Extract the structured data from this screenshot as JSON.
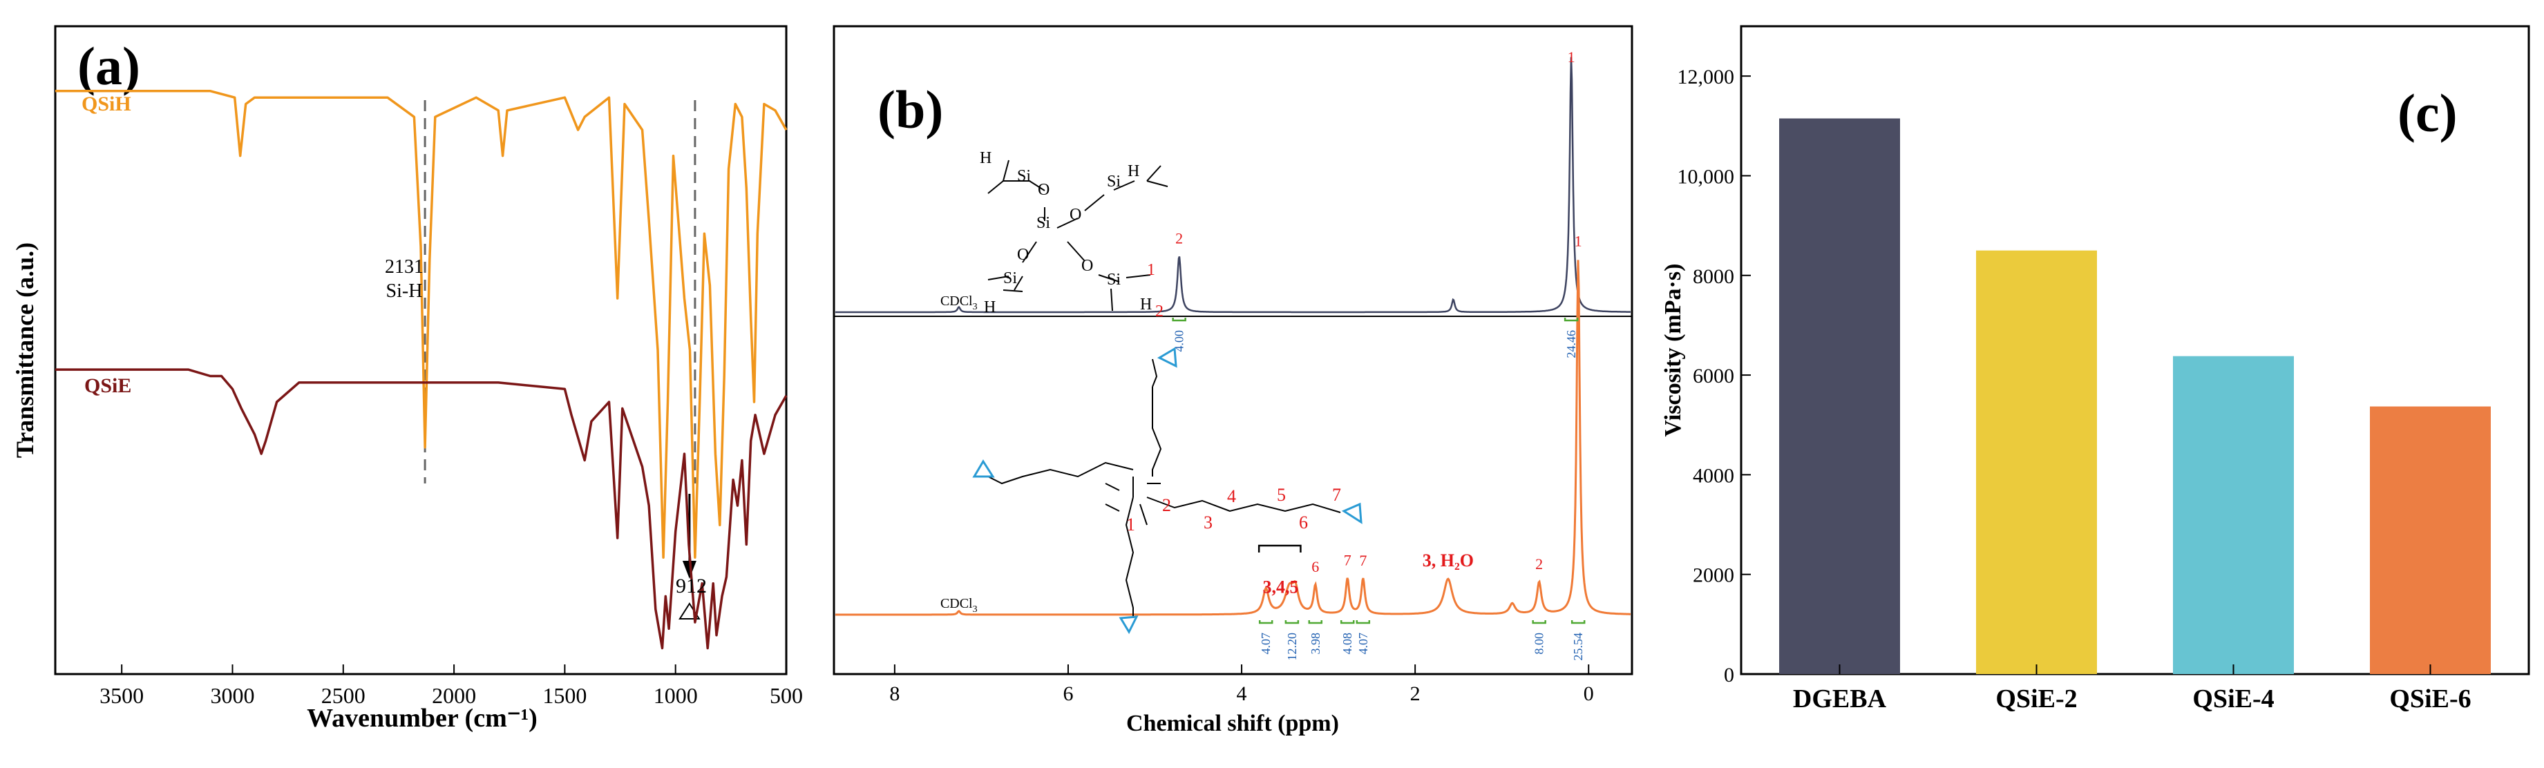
{
  "colors": {
    "qsih": "#f0961c",
    "qsie": "#7b1616",
    "nmr_top": "#3d4360",
    "nmr_bottom": "#f07a36",
    "marker_red": "#e31a1c",
    "integral_green": "#4fa832",
    "integral_blue": "#1f5fb0",
    "bar_dgeba": "#4b4d63",
    "bar_qsie2": "#ebcb3c",
    "bar_qsie4": "#67c4d2",
    "bar_qsie6": "#ec7e43"
  },
  "chart_data": [
    {
      "panel_label": "(a)",
      "type": "line",
      "xlabel": "Wavenumber (cm⁻¹)",
      "ylabel": "Transmittance (a.u.)",
      "xlim": [
        3800,
        500
      ],
      "x_reversed": true,
      "xticks": [
        "3500",
        "3000",
        "2500",
        "2000",
        "1500",
        "1000",
        "500"
      ],
      "xtick_values": [
        3500,
        3000,
        2500,
        2000,
        1500,
        1000,
        500
      ],
      "ylim": [
        0,
        1
      ],
      "series": [
        {
          "name": "QSiH",
          "x": [
            3800,
            3100,
            2990,
            2965,
            2940,
            2900,
            2700,
            2300,
            2180,
            2150,
            2131,
            2110,
            2085,
            1900,
            1800,
            1780,
            1760,
            1500,
            1440,
            1410,
            1300,
            1262,
            1230,
            1150,
            1120,
            1080,
            1055,
            1035,
            1010,
            960,
            935,
            912,
            890,
            870,
            845,
            820,
            800,
            780,
            760,
            730,
            700,
            680,
            660,
            645,
            630,
            600,
            550,
            500
          ],
          "y": [
            0.9,
            0.9,
            0.89,
            0.8,
            0.88,
            0.89,
            0.89,
            0.89,
            0.86,
            0.66,
            0.35,
            0.64,
            0.86,
            0.89,
            0.87,
            0.8,
            0.87,
            0.89,
            0.84,
            0.86,
            0.89,
            0.58,
            0.88,
            0.84,
            0.7,
            0.5,
            0.18,
            0.42,
            0.8,
            0.58,
            0.5,
            0.18,
            0.43,
            0.68,
            0.6,
            0.34,
            0.23,
            0.46,
            0.78,
            0.88,
            0.86,
            0.75,
            0.55,
            0.42,
            0.68,
            0.88,
            0.87,
            0.84
          ]
        },
        {
          "name": "QSiE",
          "x": [
            3800,
            3200,
            3100,
            3050,
            3000,
            2960,
            2930,
            2900,
            2870,
            2850,
            2800,
            2700,
            2500,
            2131,
            1800,
            1500,
            1470,
            1410,
            1380,
            1300,
            1262,
            1240,
            1200,
            1150,
            1120,
            1090,
            1060,
            1045,
            1030,
            1000,
            960,
            940,
            912,
            880,
            855,
            830,
            815,
            790,
            770,
            740,
            720,
            700,
            680,
            660,
            640,
            600,
            550,
            500
          ],
          "y": [
            0.47,
            0.47,
            0.46,
            0.46,
            0.44,
            0.41,
            0.39,
            0.37,
            0.34,
            0.36,
            0.42,
            0.45,
            0.45,
            0.45,
            0.45,
            0.44,
            0.4,
            0.33,
            0.39,
            0.42,
            0.21,
            0.41,
            0.37,
            0.32,
            0.26,
            0.1,
            0.04,
            0.12,
            0.07,
            0.22,
            0.34,
            0.2,
            0.08,
            0.14,
            0.04,
            0.14,
            0.06,
            0.12,
            0.15,
            0.3,
            0.26,
            0.33,
            0.2,
            0.36,
            0.4,
            0.34,
            0.4,
            0.43
          ]
        }
      ],
      "annotations": {
        "series_label_1": "QSiH",
        "series_label_2": "QSiE",
        "peak1_number": "2131",
        "peak1_label": "Si-H",
        "peak1_x": 2131,
        "peak2_number": "912",
        "peak2_x": 912
      }
    },
    {
      "panel_label": "(b)",
      "type": "line",
      "xlabel": "Chemical shift (ppm)",
      "xlim": [
        8.7,
        -0.5
      ],
      "x_reversed": true,
      "xticks": [
        "8",
        "6",
        "4",
        "2",
        "0"
      ],
      "xtick_values": [
        8,
        6,
        4,
        2,
        0
      ],
      "spectra": [
        {
          "name": "QSiH",
          "solvent_label": "CDCl",
          "solvent_sub": "3",
          "solvent_ppm": 7.26,
          "peaks": [
            {
              "ppm": 7.26,
              "height": 0.02,
              "width": 0.02
            },
            {
              "ppm": 4.72,
              "height": 0.22,
              "width": 0.025
            },
            {
              "ppm": 1.56,
              "height": 0.05,
              "width": 0.02
            },
            {
              "ppm": 0.2,
              "height": 1.0,
              "width": 0.022
            }
          ],
          "peak_labels": [
            {
              "ppm": 4.72,
              "text": "2"
            },
            {
              "ppm": 0.2,
              "text": "1"
            }
          ],
          "integrals": [
            {
              "ppm": 4.72,
              "value": "4.00"
            },
            {
              "ppm": 0.2,
              "value": "24.46"
            }
          ],
          "structure_labels": [
            "H",
            "Si",
            "O",
            "Si",
            "O",
            "Si",
            "H",
            "O",
            "Si",
            "O",
            "Si",
            "H",
            "1",
            "2",
            "H"
          ]
        },
        {
          "name": "QSiE",
          "solvent_label": "CDCl",
          "solvent_sub": "3",
          "solvent_ppm": 7.26,
          "peaks": [
            {
              "ppm": 7.26,
              "height": 0.01,
              "width": 0.02
            },
            {
              "ppm": 3.72,
              "height": 0.07,
              "width": 0.04
            },
            {
              "ppm": 3.45,
              "height": 0.07,
              "width": 0.06
            },
            {
              "ppm": 3.38,
              "height": 0.06,
              "width": 0.04
            },
            {
              "ppm": 3.15,
              "height": 0.08,
              "width": 0.025
            },
            {
              "ppm": 2.78,
              "height": 0.1,
              "width": 0.025
            },
            {
              "ppm": 2.6,
              "height": 0.1,
              "width": 0.025
            },
            {
              "ppm": 1.62,
              "height": 0.1,
              "width": 0.06
            },
            {
              "ppm": 0.88,
              "height": 0.03,
              "width": 0.04
            },
            {
              "ppm": 0.57,
              "height": 0.09,
              "width": 0.03
            },
            {
              "ppm": 0.12,
              "height": 1.0,
              "width": 0.022
            }
          ],
          "peak_labels": [
            {
              "ppm": 3.55,
              "text": "3,4,5"
            },
            {
              "ppm": 3.15,
              "text": "6"
            },
            {
              "ppm": 2.78,
              "text": "7"
            },
            {
              "ppm": 2.6,
              "text": "7"
            },
            {
              "ppm": 1.62,
              "text": "3, H₂O"
            },
            {
              "ppm": 0.57,
              "text": "2"
            },
            {
              "ppm": 0.12,
              "text": "1"
            }
          ],
          "integrals": [
            {
              "ppm": 3.72,
              "value": "4.07"
            },
            {
              "ppm": 3.42,
              "value": "12.20"
            },
            {
              "ppm": 3.15,
              "value": "3.98"
            },
            {
              "ppm": 2.78,
              "value": "4.08"
            },
            {
              "ppm": 2.6,
              "value": "4.07"
            },
            {
              "ppm": 0.57,
              "value": "8.00"
            },
            {
              "ppm": 0.12,
              "value": "25.54"
            }
          ],
          "structure_labels": [
            "1",
            "2",
            "3",
            "4",
            "5",
            "6",
            "7"
          ]
        }
      ]
    },
    {
      "panel_label": "(c)",
      "type": "bar",
      "ylabel": "Viscosity (mPa·s)",
      "categories": [
        "DGEBA",
        "QSiE-2",
        "QSiE-4",
        "QSiE-6"
      ],
      "values": [
        11150,
        8500,
        6380,
        5370
      ],
      "ylim": [
        0,
        13000
      ],
      "yticks": [
        "0",
        "2000",
        "4000",
        "6000",
        "8000",
        "10,000",
        "12,000"
      ],
      "ytick_values": [
        0,
        2000,
        4000,
        6000,
        8000,
        10000,
        12000
      ]
    }
  ]
}
